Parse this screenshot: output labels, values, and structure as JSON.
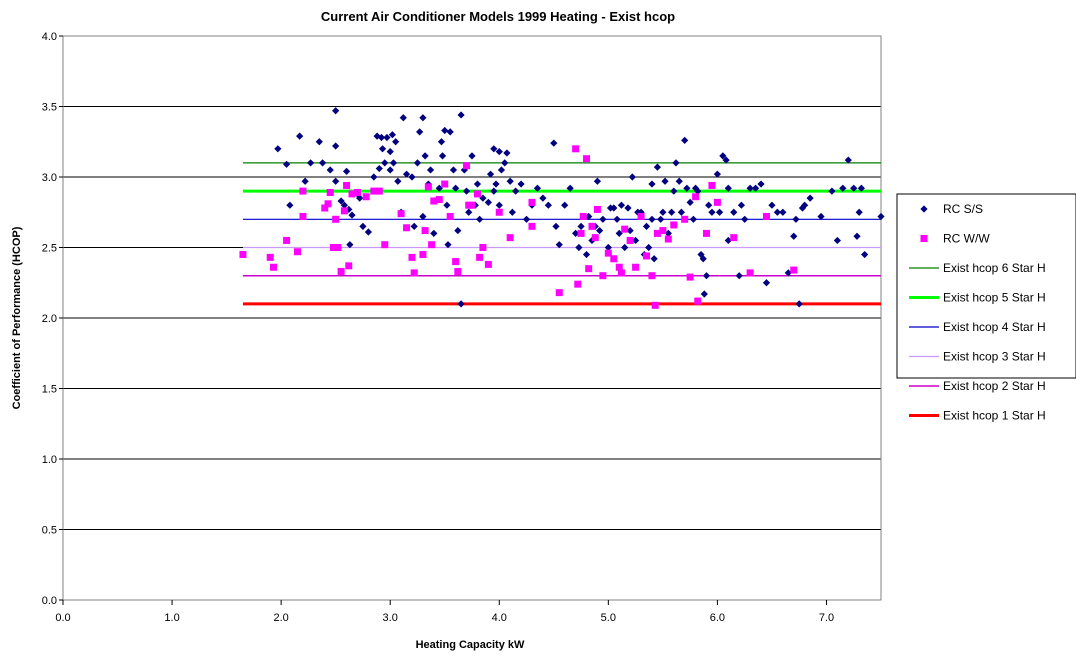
{
  "chart_data": {
    "type": "scatter",
    "title": "Current Air Conditioner Models 1999 Heating - Exist hcop",
    "xlabel": "Heating Capacity kW",
    "ylabel": "Coefficient of Performance (HCOP)",
    "xlim": [
      0,
      7.5
    ],
    "ylim": [
      0,
      4.0
    ],
    "x_ticks": [
      "0.0",
      "1.0",
      "2.0",
      "3.0",
      "4.0",
      "5.0",
      "6.0",
      "7.0"
    ],
    "y_ticks": [
      "0.0",
      "0.5",
      "1.0",
      "1.5",
      "2.0",
      "2.5",
      "3.0",
      "3.5",
      "4.0"
    ],
    "grid": "horizontal",
    "legend_position": "right",
    "series": [
      {
        "name": "RC S/S",
        "kind": "points",
        "marker": "diamond",
        "color": "#000080",
        "points": [
          [
            1.97,
            3.2
          ],
          [
            2.05,
            3.09
          ],
          [
            2.08,
            2.8
          ],
          [
            2.17,
            3.29
          ],
          [
            2.22,
            2.97
          ],
          [
            2.27,
            3.1
          ],
          [
            2.35,
            3.25
          ],
          [
            2.38,
            3.1
          ],
          [
            2.45,
            3.05
          ],
          [
            2.5,
            2.97
          ],
          [
            2.5,
            3.47
          ],
          [
            2.5,
            3.22
          ],
          [
            2.55,
            2.83
          ],
          [
            2.58,
            2.8
          ],
          [
            2.6,
            3.04
          ],
          [
            2.62,
            2.77
          ],
          [
            2.63,
            2.52
          ],
          [
            2.65,
            2.73
          ],
          [
            2.7,
            2.88
          ],
          [
            2.72,
            2.85
          ],
          [
            2.75,
            2.65
          ],
          [
            2.8,
            2.61
          ],
          [
            2.85,
            3.0
          ],
          [
            2.88,
            3.29
          ],
          [
            2.9,
            3.06
          ],
          [
            2.92,
            3.28
          ],
          [
            2.93,
            3.2
          ],
          [
            2.95,
            3.1
          ],
          [
            2.97,
            3.28
          ],
          [
            3.0,
            3.05
          ],
          [
            3.0,
            3.18
          ],
          [
            3.02,
            3.3
          ],
          [
            3.03,
            3.1
          ],
          [
            3.05,
            3.25
          ],
          [
            3.07,
            2.97
          ],
          [
            3.1,
            2.75
          ],
          [
            3.12,
            3.42
          ],
          [
            3.15,
            3.02
          ],
          [
            3.2,
            3.0
          ],
          [
            3.22,
            2.65
          ],
          [
            3.25,
            3.1
          ],
          [
            3.27,
            3.32
          ],
          [
            3.3,
            3.42
          ],
          [
            3.3,
            2.72
          ],
          [
            3.32,
            3.15
          ],
          [
            3.35,
            2.95
          ],
          [
            3.37,
            3.05
          ],
          [
            3.4,
            2.6
          ],
          [
            3.45,
            2.92
          ],
          [
            3.47,
            3.25
          ],
          [
            3.48,
            3.15
          ],
          [
            3.5,
            3.33
          ],
          [
            3.52,
            2.8
          ],
          [
            3.53,
            2.52
          ],
          [
            3.55,
            3.32
          ],
          [
            3.58,
            3.05
          ],
          [
            3.6,
            2.92
          ],
          [
            3.62,
            2.62
          ],
          [
            3.65,
            3.44
          ],
          [
            3.65,
            2.1
          ],
          [
            3.68,
            3.05
          ],
          [
            3.7,
            2.9
          ],
          [
            3.72,
            2.75
          ],
          [
            3.75,
            3.15
          ],
          [
            3.78,
            2.8
          ],
          [
            3.8,
            2.95
          ],
          [
            3.82,
            2.7
          ],
          [
            3.85,
            2.85
          ],
          [
            3.9,
            2.82
          ],
          [
            3.92,
            3.02
          ],
          [
            3.95,
            3.2
          ],
          [
            3.95,
            2.9
          ],
          [
            3.97,
            2.95
          ],
          [
            4.0,
            3.18
          ],
          [
            4.0,
            2.8
          ],
          [
            4.02,
            3.05
          ],
          [
            4.05,
            3.1
          ],
          [
            4.07,
            3.17
          ],
          [
            4.1,
            2.97
          ],
          [
            4.12,
            2.75
          ],
          [
            4.15,
            2.9
          ],
          [
            4.2,
            2.95
          ],
          [
            4.25,
            2.7
          ],
          [
            4.3,
            2.8
          ],
          [
            4.35,
            2.92
          ],
          [
            4.4,
            2.85
          ],
          [
            4.45,
            2.8
          ],
          [
            4.5,
            3.24
          ],
          [
            4.52,
            2.65
          ],
          [
            4.55,
            2.52
          ],
          [
            4.6,
            2.8
          ],
          [
            4.65,
            2.92
          ],
          [
            4.7,
            2.6
          ],
          [
            4.73,
            2.5
          ],
          [
            4.75,
            2.65
          ],
          [
            4.78,
            2.72
          ],
          [
            4.8,
            2.45
          ],
          [
            4.82,
            2.72
          ],
          [
            4.85,
            2.55
          ],
          [
            4.88,
            2.65
          ],
          [
            4.9,
            2.97
          ],
          [
            4.92,
            2.62
          ],
          [
            4.95,
            2.7
          ],
          [
            5.0,
            2.5
          ],
          [
            5.02,
            2.78
          ],
          [
            5.05,
            2.78
          ],
          [
            5.08,
            2.7
          ],
          [
            5.1,
            2.6
          ],
          [
            5.12,
            2.8
          ],
          [
            5.15,
            2.5
          ],
          [
            5.18,
            2.78
          ],
          [
            5.2,
            2.62
          ],
          [
            5.22,
            3.0
          ],
          [
            5.25,
            2.55
          ],
          [
            5.27,
            2.75
          ],
          [
            5.3,
            2.75
          ],
          [
            5.33,
            2.45
          ],
          [
            5.35,
            2.65
          ],
          [
            5.37,
            2.5
          ],
          [
            5.4,
            2.7
          ],
          [
            5.4,
            2.95
          ],
          [
            5.42,
            2.42
          ],
          [
            5.45,
            3.07
          ],
          [
            5.48,
            2.7
          ],
          [
            5.5,
            2.75
          ],
          [
            5.52,
            2.97
          ],
          [
            5.55,
            2.6
          ],
          [
            5.58,
            2.75
          ],
          [
            5.6,
            2.9
          ],
          [
            5.62,
            3.1
          ],
          [
            5.65,
            2.97
          ],
          [
            5.67,
            2.75
          ],
          [
            5.7,
            3.26
          ],
          [
            5.72,
            2.92
          ],
          [
            5.75,
            2.82
          ],
          [
            5.78,
            2.7
          ],
          [
            5.8,
            2.92
          ],
          [
            5.82,
            2.9
          ],
          [
            5.85,
            2.45
          ],
          [
            5.87,
            2.42
          ],
          [
            5.88,
            2.17
          ],
          [
            5.9,
            2.3
          ],
          [
            5.92,
            2.8
          ],
          [
            5.95,
            2.75
          ],
          [
            6.0,
            3.02
          ],
          [
            6.02,
            2.75
          ],
          [
            6.05,
            3.15
          ],
          [
            6.08,
            3.12
          ],
          [
            6.1,
            2.55
          ],
          [
            6.1,
            2.92
          ],
          [
            6.15,
            2.75
          ],
          [
            6.2,
            2.3
          ],
          [
            6.22,
            2.8
          ],
          [
            6.25,
            2.7
          ],
          [
            6.3,
            2.92
          ],
          [
            6.35,
            2.92
          ],
          [
            6.4,
            2.95
          ],
          [
            6.45,
            2.25
          ],
          [
            6.5,
            2.8
          ],
          [
            6.55,
            2.75
          ],
          [
            6.6,
            2.75
          ],
          [
            6.65,
            2.32
          ],
          [
            6.7,
            2.58
          ],
          [
            6.72,
            2.7
          ],
          [
            6.75,
            2.1
          ],
          [
            6.78,
            2.78
          ],
          [
            6.8,
            2.8
          ],
          [
            6.85,
            2.85
          ],
          [
            6.95,
            2.72
          ],
          [
            7.05,
            2.9
          ],
          [
            7.1,
            2.55
          ],
          [
            7.15,
            2.92
          ],
          [
            7.2,
            3.12
          ],
          [
            7.25,
            2.92
          ],
          [
            7.28,
            2.58
          ],
          [
            7.3,
            2.75
          ],
          [
            7.32,
            2.92
          ],
          [
            7.35,
            2.45
          ],
          [
            7.5,
            2.72
          ]
        ]
      },
      {
        "name": "RC W/W",
        "kind": "points",
        "marker": "square",
        "color": "#FF00FF",
        "points": [
          [
            1.65,
            2.45
          ],
          [
            1.9,
            2.43
          ],
          [
            1.93,
            2.36
          ],
          [
            2.05,
            2.55
          ],
          [
            2.15,
            2.47
          ],
          [
            2.2,
            2.72
          ],
          [
            2.2,
            2.9
          ],
          [
            2.4,
            2.78
          ],
          [
            2.43,
            2.81
          ],
          [
            2.45,
            2.89
          ],
          [
            2.48,
            2.5
          ],
          [
            2.5,
            2.7
          ],
          [
            2.52,
            2.5
          ],
          [
            2.55,
            2.33
          ],
          [
            2.58,
            2.76
          ],
          [
            2.6,
            2.94
          ],
          [
            2.62,
            2.37
          ],
          [
            2.65,
            2.88
          ],
          [
            2.7,
            2.89
          ],
          [
            2.78,
            2.86
          ],
          [
            2.85,
            2.9
          ],
          [
            2.9,
            2.9
          ],
          [
            2.95,
            2.52
          ],
          [
            3.1,
            2.74
          ],
          [
            3.15,
            2.64
          ],
          [
            3.2,
            2.43
          ],
          [
            3.22,
            2.32
          ],
          [
            3.3,
            2.45
          ],
          [
            3.32,
            2.62
          ],
          [
            3.35,
            2.93
          ],
          [
            3.38,
            2.52
          ],
          [
            3.4,
            2.83
          ],
          [
            3.45,
            2.84
          ],
          [
            3.5,
            2.95
          ],
          [
            3.55,
            2.72
          ],
          [
            3.6,
            2.4
          ],
          [
            3.62,
            2.33
          ],
          [
            3.7,
            3.08
          ],
          [
            3.72,
            2.8
          ],
          [
            3.75,
            2.8
          ],
          [
            3.8,
            2.88
          ],
          [
            3.82,
            2.43
          ],
          [
            3.85,
            2.5
          ],
          [
            3.9,
            2.38
          ],
          [
            4.0,
            2.75
          ],
          [
            4.1,
            2.57
          ],
          [
            4.3,
            2.82
          ],
          [
            4.3,
            2.65
          ],
          [
            4.55,
            2.18
          ],
          [
            4.7,
            3.2
          ],
          [
            4.72,
            2.24
          ],
          [
            4.75,
            2.6
          ],
          [
            4.77,
            2.72
          ],
          [
            4.8,
            3.13
          ],
          [
            4.82,
            2.35
          ],
          [
            4.85,
            2.65
          ],
          [
            4.88,
            2.57
          ],
          [
            4.9,
            2.77
          ],
          [
            4.95,
            2.3
          ],
          [
            5.0,
            2.46
          ],
          [
            5.05,
            2.42
          ],
          [
            5.1,
            2.36
          ],
          [
            5.12,
            2.32
          ],
          [
            5.15,
            2.63
          ],
          [
            5.2,
            2.55
          ],
          [
            5.25,
            2.36
          ],
          [
            5.3,
            2.72
          ],
          [
            5.35,
            2.44
          ],
          [
            5.4,
            2.3
          ],
          [
            5.43,
            2.09
          ],
          [
            5.45,
            2.6
          ],
          [
            5.5,
            2.62
          ],
          [
            5.55,
            2.56
          ],
          [
            5.6,
            2.66
          ],
          [
            5.7,
            2.7
          ],
          [
            5.75,
            2.29
          ],
          [
            5.8,
            2.86
          ],
          [
            5.82,
            2.12
          ],
          [
            5.9,
            2.6
          ],
          [
            5.95,
            2.94
          ],
          [
            6.0,
            2.82
          ],
          [
            6.15,
            2.57
          ],
          [
            6.3,
            2.32
          ],
          [
            6.45,
            2.72
          ],
          [
            6.7,
            2.34
          ]
        ]
      },
      {
        "name": "Exist hcop 6 Star H",
        "kind": "line",
        "color": "#008000",
        "stroke": 1.2,
        "x": [
          1.65,
          7.5
        ],
        "y": [
          3.1,
          3.1
        ]
      },
      {
        "name": "Exist hcop 5 Star H",
        "kind": "line",
        "color": "#00FF00",
        "stroke": 3,
        "x": [
          1.65,
          7.5
        ],
        "y": [
          2.9,
          2.9
        ]
      },
      {
        "name": "Exist hcop 4 Star H",
        "kind": "line",
        "color": "#0000CC",
        "stroke": 1.2,
        "x": [
          1.65,
          7.5
        ],
        "y": [
          2.7,
          2.7
        ]
      },
      {
        "name": "Exist hcop 3 Star H",
        "kind": "line",
        "color": "#CC99FF",
        "stroke": 1.2,
        "x": [
          1.65,
          7.5
        ],
        "y": [
          2.5,
          2.5
        ]
      },
      {
        "name": "Exist hcop 2 Star H",
        "kind": "line",
        "color": "#CC00CC",
        "stroke": 1.5,
        "x": [
          1.65,
          7.5
        ],
        "y": [
          2.3,
          2.3
        ]
      },
      {
        "name": "Exist hcop 1 Star H",
        "kind": "line",
        "color": "#FF0000",
        "stroke": 3,
        "x": [
          1.65,
          7.5
        ],
        "y": [
          2.1,
          2.1
        ]
      }
    ]
  }
}
